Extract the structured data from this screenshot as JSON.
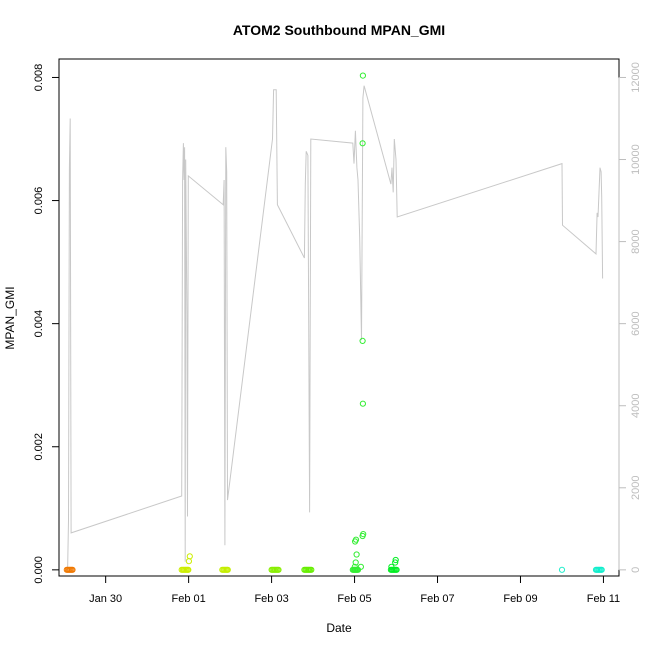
{
  "chart_data": {
    "type": "scatter",
    "title": "ATOM2 Southbound MPAN_GMI",
    "xlabel": "Date",
    "ylabel": "MPAN_GMI",
    "x_unit": "date",
    "xlim": [
      "2016-01-28T21:00",
      "2016-02-11T09:00"
    ],
    "ylim": [
      -0.0001,
      0.0083
    ],
    "ylim_right": [
      -150,
      12450
    ],
    "x_ticks": [
      {
        "date": "2016-01-30",
        "label": "Jan 30"
      },
      {
        "date": "2016-02-01",
        "label": "Feb 01"
      },
      {
        "date": "2016-02-03",
        "label": "Feb 03"
      },
      {
        "date": "2016-02-05",
        "label": "Feb 05"
      },
      {
        "date": "2016-02-07",
        "label": "Feb 07"
      },
      {
        "date": "2016-02-09",
        "label": "Feb 09"
      },
      {
        "date": "2016-02-11",
        "label": "Feb 11"
      }
    ],
    "y_ticks": [
      {
        "value": 0.0,
        "label": "0.000"
      },
      {
        "value": 0.002,
        "label": "0.002"
      },
      {
        "value": 0.004,
        "label": "0.004"
      },
      {
        "value": 0.006,
        "label": "0.006"
      },
      {
        "value": 0.008,
        "label": "0.008"
      }
    ],
    "y_ticks_right": [
      {
        "value": 0,
        "label": "0"
      },
      {
        "value": 2000,
        "label": "2000"
      },
      {
        "value": 4000,
        "label": "4000"
      },
      {
        "value": 6000,
        "label": "6000"
      },
      {
        "value": 8000,
        "label": "8000"
      },
      {
        "value": 10000,
        "label": "10000"
      },
      {
        "value": 12000,
        "label": "12000"
      }
    ],
    "grid": false,
    "legend": "none",
    "altitude_trace": {
      "color": "#c8c8c8",
      "axis": "right",
      "points": [
        [
          "2016-01-29T02:00",
          0
        ],
        [
          "2016-01-29T02:30",
          1200
        ],
        [
          "2016-01-29T03:00",
          9800
        ],
        [
          "2016-01-29T03:30",
          11000
        ],
        [
          "2016-01-29T04:00",
          900
        ],
        [
          "2016-01-31T20:00",
          1800
        ],
        [
          "2016-01-31T20:30",
          9500
        ],
        [
          "2016-01-31T21:00",
          10400
        ],
        [
          "2016-01-31T21:20",
          9500
        ],
        [
          "2016-01-31T21:40",
          10300
        ],
        [
          "2016-01-31T22:00",
          200
        ],
        [
          "2016-01-31T22:20",
          10000
        ],
        [
          "2016-01-31T23:00",
          6200
        ],
        [
          "2016-01-31T23:20",
          1300
        ],
        [
          "2016-01-31T23:50",
          9600
        ],
        [
          "2016-02-01T20:00",
          8900
        ],
        [
          "2016-02-01T20:30",
          9500
        ],
        [
          "2016-02-01T21:00",
          600
        ],
        [
          "2016-02-01T21:30",
          10300
        ],
        [
          "2016-02-01T22:00",
          9700
        ],
        [
          "2016-02-01T22:30",
          1700
        ],
        [
          "2016-02-03T00:30",
          10500
        ],
        [
          "2016-02-03T01:10",
          11700
        ],
        [
          "2016-02-03T02:00",
          11700
        ],
        [
          "2016-02-03T02:40",
          11700
        ],
        [
          "2016-02-03T03:20",
          8900
        ],
        [
          "2016-02-03T19:00",
          7600
        ],
        [
          "2016-02-03T19:30",
          9400
        ],
        [
          "2016-02-03T20:00",
          10200
        ],
        [
          "2016-02-03T21:00",
          10100
        ],
        [
          "2016-02-03T22:00",
          1400
        ],
        [
          "2016-02-03T22:40",
          10500
        ],
        [
          "2016-02-04T23:00",
          10400
        ],
        [
          "2016-02-04T23:40",
          9900
        ],
        [
          "2016-02-05T00:30",
          10700
        ],
        [
          "2016-02-05T01:20",
          9800
        ],
        [
          "2016-02-05T02:00",
          9500
        ],
        [
          "2016-02-05T03:00",
          8100
        ],
        [
          "2016-02-05T04:00",
          5600
        ],
        [
          "2016-02-05T04:50",
          11500
        ],
        [
          "2016-02-05T05:30",
          11800
        ],
        [
          "2016-02-05T21:00",
          9400
        ],
        [
          "2016-02-05T21:40",
          9800
        ],
        [
          "2016-02-05T22:20",
          9200
        ],
        [
          "2016-02-05T23:00",
          10500
        ],
        [
          "2016-02-06T00:00",
          10000
        ],
        [
          "2016-02-06T00:40",
          8600
        ],
        [
          "2016-02-10T00:00",
          9900
        ],
        [
          "2016-02-10T00:20",
          8400
        ],
        [
          "2016-02-10T19:40",
          7700
        ],
        [
          "2016-02-10T20:20",
          8700
        ],
        [
          "2016-02-10T20:50",
          8600
        ],
        [
          "2016-02-10T22:00",
          9800
        ],
        [
          "2016-02-10T22:40",
          9700
        ],
        [
          "2016-02-10T23:00",
          9100
        ],
        [
          "2016-02-10T23:30",
          7100
        ]
      ]
    },
    "series": [
      {
        "color": "#f07800",
        "points": [
          [
            "2016-01-29T01:30",
            0.0
          ],
          [
            "2016-01-29T02:10",
            0.0
          ],
          [
            "2016-01-29T02:50",
            0.0
          ],
          [
            "2016-01-29T03:30",
            0.0
          ],
          [
            "2016-01-29T04:10",
            0.0
          ],
          [
            "2016-01-29T04:50",
            0.0
          ]
        ]
      },
      {
        "color": "#ccee00",
        "points": [
          [
            "2016-01-31T20:00",
            0.0
          ],
          [
            "2016-01-31T20:40",
            0.0
          ],
          [
            "2016-01-31T21:20",
            0.0
          ],
          [
            "2016-01-31T22:00",
            0.0
          ],
          [
            "2016-01-31T22:40",
            0.0
          ],
          [
            "2016-01-31T23:20",
            0.0
          ],
          [
            "2016-01-31T23:50",
            0.0
          ],
          [
            "2016-02-01T00:10",
            0.00014
          ],
          [
            "2016-02-01T00:40",
            0.00022
          ]
        ]
      },
      {
        "color": "#c4ee00",
        "points": [
          [
            "2016-02-01T19:30",
            0.0
          ],
          [
            "2016-02-01T20:10",
            0.0
          ],
          [
            "2016-02-01T20:50",
            0.0
          ],
          [
            "2016-02-01T21:30",
            0.0
          ],
          [
            "2016-02-01T22:10",
            0.0
          ],
          [
            "2016-02-01T22:40",
            0.0
          ]
        ]
      },
      {
        "color": "#88ee00",
        "points": [
          [
            "2016-02-03T00:00",
            0.0
          ],
          [
            "2016-02-03T00:40",
            0.0
          ],
          [
            "2016-02-03T01:20",
            0.0
          ],
          [
            "2016-02-03T02:00",
            0.0
          ],
          [
            "2016-02-03T02:40",
            0.0
          ],
          [
            "2016-02-03T03:20",
            0.0
          ],
          [
            "2016-02-03T04:00",
            0.0
          ]
        ]
      },
      {
        "color": "#66ee00",
        "points": [
          [
            "2016-02-03T19:00",
            0.0
          ],
          [
            "2016-02-03T19:40",
            0.0
          ],
          [
            "2016-02-03T20:20",
            0.0
          ],
          [
            "2016-02-03T21:00",
            0.0
          ],
          [
            "2016-02-03T21:40",
            0.0
          ],
          [
            "2016-02-03T22:20",
            0.0
          ],
          [
            "2016-02-03T23:00",
            0.0
          ]
        ]
      },
      {
        "color": "#33ee33",
        "points": [
          [
            "2016-02-04T23:00",
            0.0
          ],
          [
            "2016-02-04T23:30",
            0.0
          ],
          [
            "2016-02-05T00:00",
            0.0
          ],
          [
            "2016-02-05T00:30",
            0.0
          ],
          [
            "2016-02-05T01:00",
            0.0
          ],
          [
            "2016-02-05T01:30",
            0.0
          ],
          [
            "2016-02-05T02:00",
            0.0
          ],
          [
            "2016-02-05T00:10",
            5e-05
          ],
          [
            "2016-02-05T00:40",
            0.00012
          ],
          [
            "2016-02-05T01:10",
            0.00025
          ],
          [
            "2016-02-05T00:20",
            0.00046
          ],
          [
            "2016-02-05T00:50",
            0.00049
          ],
          [
            "2016-02-05T04:40",
            0.00055
          ],
          [
            "2016-02-05T05:00",
            0.00058
          ],
          [
            "2016-02-05T03:40",
            5e-05
          ],
          [
            "2016-02-05T04:50",
            0.0027
          ],
          [
            "2016-02-05T04:40",
            0.00372
          ],
          [
            "2016-02-05T04:40",
            0.00693
          ],
          [
            "2016-02-05T04:50",
            0.00803
          ]
        ]
      },
      {
        "color": "#00ee22",
        "points": [
          [
            "2016-02-05T21:00",
            0.0
          ],
          [
            "2016-02-05T21:40",
            0.0
          ],
          [
            "2016-02-05T22:20",
            0.0
          ],
          [
            "2016-02-05T23:00",
            0.0
          ],
          [
            "2016-02-05T23:40",
            0.0
          ],
          [
            "2016-02-06T00:20",
            0.0
          ],
          [
            "2016-02-05T21:20",
            5e-05
          ],
          [
            "2016-02-05T23:30",
            0.00012
          ],
          [
            "2016-02-05T23:50",
            0.00016
          ]
        ]
      },
      {
        "color": "#22eecc",
        "points": [
          [
            "2016-02-10T00:00",
            0.0
          ]
        ]
      },
      {
        "color": "#11eecc",
        "points": [
          [
            "2016-02-10T19:40",
            0.0
          ],
          [
            "2016-02-10T20:20",
            0.0
          ],
          [
            "2016-02-10T21:00",
            0.0
          ],
          [
            "2016-02-10T21:40",
            0.0
          ],
          [
            "2016-02-10T22:20",
            0.0
          ],
          [
            "2016-02-10T23:00",
            0.0
          ]
        ]
      }
    ]
  }
}
